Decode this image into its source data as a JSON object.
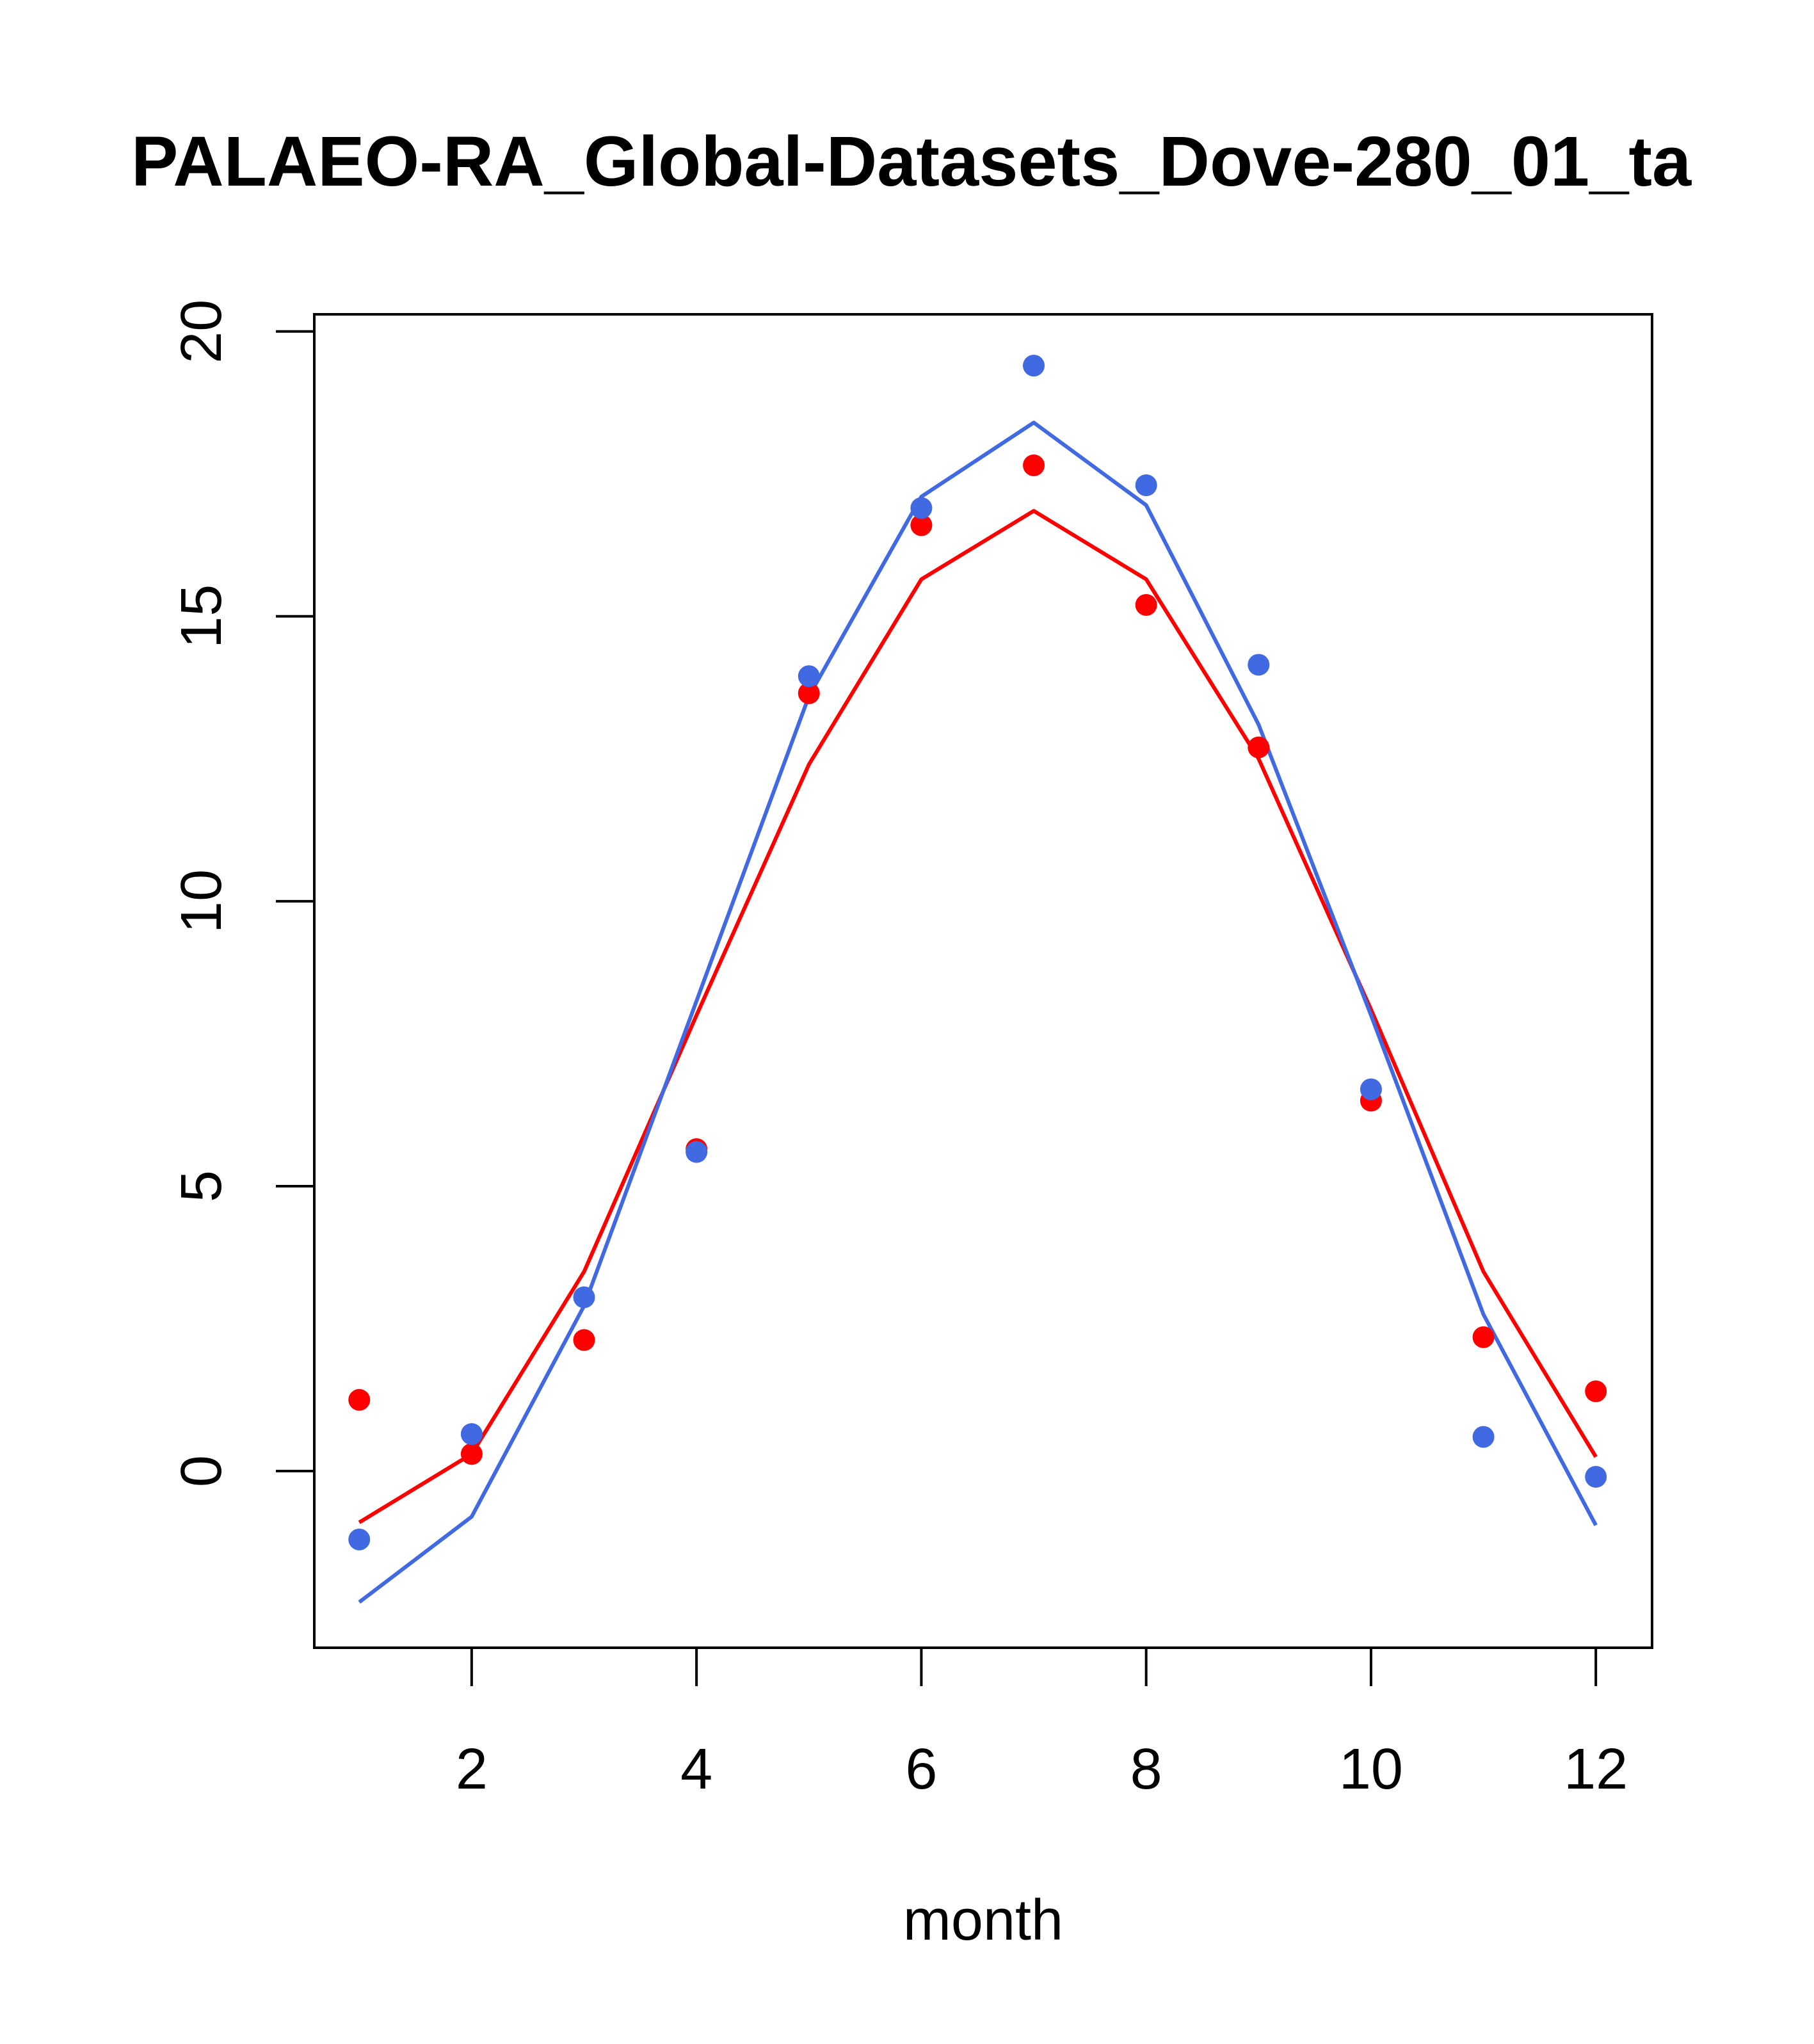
{
  "chart_data": {
    "type": "line",
    "title": "PALAEO-RA_Global-Datasets_Dove-280_01_ta",
    "xlabel": "month",
    "ylabel": "",
    "x": [
      1,
      2,
      3,
      4,
      5,
      6,
      7,
      8,
      9,
      10,
      11,
      12
    ],
    "xlim": [
      0.6,
      12.5
    ],
    "ylim": [
      -3.1,
      20.3
    ],
    "xticks": [
      2,
      4,
      6,
      8,
      10,
      12
    ],
    "yticks": [
      0,
      5,
      10,
      15,
      20
    ],
    "grid": false,
    "series": [
      {
        "color": "#ff0000",
        "line": [
          -0.9,
          0.3,
          3.5,
          8.0,
          12.4,
          15.65,
          16.85,
          15.65,
          12.5,
          8.1,
          3.5,
          0.25
        ],
        "points": [
          1.25,
          0.3,
          2.3,
          5.65,
          13.65,
          16.6,
          17.65,
          15.2,
          12.7,
          6.5,
          2.35,
          1.4
        ]
      },
      {
        "color": "#4169e1",
        "line": [
          -2.3,
          -0.8,
          2.9,
          8.25,
          13.6,
          17.1,
          18.4,
          16.95,
          13.1,
          8.0,
          2.75,
          -0.95
        ],
        "points": [
          -1.2,
          0.65,
          3.05,
          5.6,
          13.95,
          16.9,
          19.4,
          17.3,
          14.15,
          6.7,
          0.6,
          -0.1
        ]
      }
    ]
  }
}
